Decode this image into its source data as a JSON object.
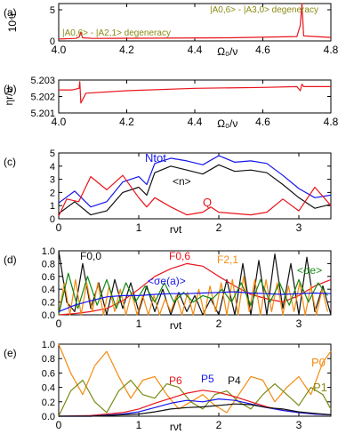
{
  "chart_data": [
    {
      "panel": "(a)",
      "type": "line",
      "ylabel": "10⁴r",
      "xlabel": "Ω₀/ν",
      "xlim": [
        4.0,
        4.8
      ],
      "ylim": [
        0,
        6
      ],
      "xticks": [
        "4.0",
        "4.2",
        "4.4",
        "4.6",
        "4.8"
      ],
      "yticks": [
        "0",
        "5"
      ],
      "annotations": [
        "|A0,6> - |A2,1> degeneracy",
        "|A0,6> - |A3,0> degeneracy"
      ],
      "series": [
        {
          "color": "#e8141c",
          "x": [
            4.0,
            4.05,
            4.06,
            4.065,
            4.07,
            4.1,
            4.3,
            4.5,
            4.7,
            4.71,
            4.715,
            4.72,
            4.8
          ],
          "y": [
            0.3,
            0.4,
            0.6,
            1.4,
            0.5,
            0.4,
            0.45,
            0.5,
            0.7,
            2.5,
            6.0,
            0.8,
            0.55
          ]
        }
      ]
    },
    {
      "panel": "(b)",
      "type": "line",
      "ylabel": "ηr/ν",
      "xlabel": "Ω₀/ν",
      "xlim": [
        4.0,
        4.8
      ],
      "ylim": [
        5.201,
        5.203
      ],
      "xticks": [
        "4.0",
        "4.2",
        "4.4",
        "4.6",
        "4.8"
      ],
      "yticks": [
        "5.201",
        "5.202",
        "5.203"
      ],
      "series": [
        {
          "color": "#e8141c",
          "x": [
            4.0,
            4.04,
            4.06,
            4.062,
            4.065,
            4.08,
            4.2,
            4.4,
            4.6,
            4.7,
            4.71,
            4.715,
            4.72,
            4.8
          ],
          "y": [
            5.2024,
            5.2024,
            5.2025,
            5.2029,
            5.2016,
            5.2022,
            5.20235,
            5.2025,
            5.20255,
            5.2026,
            5.20235,
            5.20275,
            5.2026,
            5.2026
          ]
        }
      ]
    },
    {
      "panel": "(c)",
      "type": "line",
      "xlabel": "rνt",
      "xlim": [
        0,
        3.4
      ],
      "ylim": [
        0,
        5
      ],
      "xticks": [
        "0",
        "1",
        "2",
        "3"
      ],
      "yticks": [
        "0",
        "1",
        "2",
        "3",
        "4",
        "5"
      ],
      "labels": [
        "Ntot",
        "<n>",
        "Q"
      ],
      "series": [
        {
          "label": "Ntot",
          "color": "#1515ee",
          "x": [
            0,
            0.2,
            0.4,
            0.6,
            0.8,
            1.0,
            1.1,
            1.2,
            1.4,
            1.6,
            1.8,
            2.0,
            2.2,
            2.4,
            2.6,
            2.8,
            3.0,
            3.2,
            3.4
          ],
          "y": [
            1.2,
            2.1,
            0.9,
            1.3,
            2.8,
            3.2,
            2.6,
            4.2,
            4.6,
            4.4,
            4.1,
            4.8,
            4.3,
            4.4,
            4.2,
            3.3,
            2.3,
            1.6,
            1.8
          ]
        },
        {
          "label": "<n>",
          "color": "#111111",
          "x": [
            0,
            0.2,
            0.4,
            0.6,
            0.8,
            1.0,
            1.1,
            1.2,
            1.4,
            1.6,
            1.8,
            2.0,
            2.2,
            2.4,
            2.6,
            2.8,
            3.0,
            3.2,
            3.4
          ],
          "y": [
            0.4,
            1.3,
            0.3,
            0.6,
            2.0,
            2.4,
            1.8,
            3.5,
            4.0,
            3.7,
            3.4,
            4.1,
            3.6,
            3.7,
            3.5,
            2.6,
            1.6,
            0.8,
            1.1
          ]
        },
        {
          "label": "Q",
          "color": "#e8141c",
          "x": [
            0,
            0.1,
            0.25,
            0.4,
            0.6,
            0.8,
            1.0,
            1.1,
            1.2,
            1.4,
            1.6,
            1.8,
            1.9,
            2.0,
            2.2,
            2.4,
            2.6,
            2.8,
            3.0,
            3.2,
            3.4
          ],
          "y": [
            0.2,
            1.5,
            1.3,
            3.2,
            2.2,
            3.3,
            1.6,
            0.9,
            1.6,
            0.9,
            0.3,
            0.5,
            0.9,
            0.5,
            0.4,
            0.3,
            0.5,
            1.5,
            0.6,
            2.4,
            1.0
          ]
        }
      ]
    },
    {
      "panel": "(d)",
      "type": "line",
      "xlabel": "rνt",
      "xlim": [
        0,
        3.4
      ],
      "ylim": [
        0,
        1.0
      ],
      "xticks": [
        "0",
        "1",
        "2",
        "3"
      ],
      "yticks": [
        "0.0",
        "0.2",
        "0.4",
        "0.6",
        "0.8",
        "1.0"
      ],
      "labels": [
        "F0,0",
        "F0,6",
        "F2,1",
        "<σe(a)>",
        "<σe>"
      ],
      "series": [
        {
          "label": "F0,0",
          "color": "#111111",
          "x": [
            0,
            0.1,
            0.2,
            0.3,
            0.4,
            0.5,
            0.6,
            0.7,
            0.8,
            0.9,
            1.0,
            1.1,
            1.2,
            1.3,
            1.4,
            1.5,
            1.6,
            1.7,
            1.8,
            1.9,
            2.0,
            2.1,
            2.2,
            2.3,
            2.4,
            2.5,
            2.6,
            2.7,
            2.8,
            2.9,
            3.0,
            3.1,
            3.2,
            3.3,
            3.4
          ],
          "y": [
            1.0,
            0.2,
            0.05,
            0.8,
            0.1,
            0.5,
            0.0,
            0.55,
            0.1,
            0.5,
            0.05,
            0.45,
            0.05,
            0.4,
            0.0,
            0.35,
            0.05,
            0.3,
            0.0,
            0.25,
            0.0,
            0.55,
            0.0,
            0.8,
            0.0,
            0.85,
            0.0,
            0.95,
            0.1,
            0.8,
            0.0,
            0.9,
            0.05,
            0.45,
            0.0
          ]
        },
        {
          "label": "F0,6",
          "color": "#e8141c",
          "x": [
            0,
            0.2,
            0.4,
            0.6,
            0.8,
            1.0,
            1.2,
            1.4,
            1.6,
            1.8,
            2.0,
            2.2,
            2.4,
            2.6,
            2.8,
            3.0,
            3.2,
            3.4
          ],
          "y": [
            0.0,
            0.02,
            0.05,
            0.1,
            0.22,
            0.4,
            0.6,
            0.72,
            0.8,
            0.76,
            0.6,
            0.45,
            0.32,
            0.25,
            0.2,
            0.3,
            0.45,
            0.55
          ]
        },
        {
          "label": "F2,1",
          "color": "#f58a0f",
          "x": [
            0,
            0.07,
            0.14,
            0.21,
            0.28,
            0.35,
            0.42,
            0.49,
            0.56,
            0.63,
            0.7,
            0.77,
            0.84,
            0.91,
            0.98,
            1.05,
            1.12,
            1.19,
            1.26,
            1.33,
            1.4,
            1.47,
            1.54,
            1.61,
            1.68,
            1.75,
            1.82,
            1.89,
            1.96,
            2.03,
            2.1,
            2.17,
            2.24,
            2.31,
            2.38,
            2.45,
            2.52,
            2.59,
            2.66,
            2.73,
            2.8,
            2.87,
            2.94,
            3.01,
            3.08,
            3.15,
            3.22,
            3.29,
            3.36
          ],
          "y": [
            0.0,
            0.5,
            0.0,
            0.55,
            0.0,
            0.5,
            0.05,
            0.5,
            0.0,
            0.45,
            0.05,
            0.4,
            0.0,
            0.35,
            0.0,
            0.3,
            0.0,
            0.3,
            0.0,
            0.25,
            0.05,
            0.3,
            0.0,
            0.35,
            0.0,
            0.4,
            0.0,
            0.45,
            0.05,
            0.5,
            0.0,
            0.55,
            0.0,
            0.6,
            0.05,
            0.55,
            0.0,
            0.55,
            0.05,
            0.5,
            0.0,
            0.45,
            0.05,
            0.5,
            0.0,
            0.45,
            0.0,
            0.4,
            0.05
          ]
        },
        {
          "label": "<σe>",
          "color": "#128a12",
          "x": [
            0,
            0.12,
            0.24,
            0.36,
            0.48,
            0.6,
            0.72,
            0.84,
            0.96,
            1.08,
            1.2,
            1.32,
            1.44,
            1.56,
            1.68,
            1.8,
            1.92,
            2.04,
            2.16,
            2.28,
            2.4,
            2.52,
            2.64,
            2.76,
            2.88,
            3.0,
            3.12,
            3.24,
            3.36
          ],
          "y": [
            0.0,
            0.65,
            0.1,
            0.6,
            0.15,
            0.55,
            0.1,
            0.5,
            0.2,
            0.45,
            0.2,
            0.5,
            0.2,
            0.35,
            0.2,
            0.3,
            0.25,
            0.4,
            0.2,
            0.5,
            0.15,
            0.55,
            0.2,
            0.5,
            0.15,
            0.55,
            0.2,
            0.5,
            0.3
          ]
        },
        {
          "label": "<σe(a)>",
          "color": "#1515ee",
          "x": [
            0,
            0.2,
            0.4,
            0.6,
            0.8,
            1.0,
            1.2,
            1.4,
            1.6,
            1.8,
            2.0,
            2.2,
            2.4,
            2.6,
            2.8,
            3.0,
            3.2,
            3.4
          ],
          "y": [
            0.05,
            0.15,
            0.22,
            0.28,
            0.3,
            0.3,
            0.32,
            0.33,
            0.33,
            0.34,
            0.35,
            0.36,
            0.34,
            0.33,
            0.32,
            0.33,
            0.34,
            0.33
          ]
        }
      ]
    },
    {
      "panel": "(e)",
      "type": "line",
      "xlabel": "rνt",
      "xlim": [
        0,
        3.4
      ],
      "ylim": [
        0,
        1.0
      ],
      "xticks": [
        "0",
        "1",
        "2",
        "3"
      ],
      "yticks": [
        "0.0",
        "0.2",
        "0.4",
        "0.6",
        "0.8",
        "1.0"
      ],
      "labels": [
        "P0",
        "P1",
        "P6",
        "P5",
        "P4"
      ],
      "series": [
        {
          "label": "P0",
          "color": "#f58a0f",
          "x": [
            0,
            0.15,
            0.3,
            0.45,
            0.6,
            0.75,
            0.9,
            1.05,
            1.2,
            1.35,
            1.5,
            1.65,
            1.8,
            1.95,
            2.1,
            2.25,
            2.4,
            2.55,
            2.7,
            2.85,
            3.0,
            3.15,
            3.3,
            3.4
          ],
          "y": [
            1.0,
            0.6,
            0.3,
            0.7,
            0.9,
            0.55,
            0.25,
            0.5,
            0.55,
            0.3,
            0.1,
            0.2,
            0.3,
            0.15,
            0.05,
            0.3,
            0.55,
            0.5,
            0.2,
            0.4,
            0.55,
            0.3,
            0.75,
            0.9
          ]
        },
        {
          "label": "P1",
          "color": "#7a8a12",
          "x": [
            0,
            0.15,
            0.3,
            0.45,
            0.6,
            0.75,
            0.9,
            1.05,
            1.2,
            1.35,
            1.5,
            1.65,
            1.8,
            1.95,
            2.1,
            2.25,
            2.4,
            2.55,
            2.7,
            2.85,
            3.0,
            3.15,
            3.3,
            3.4
          ],
          "y": [
            0.0,
            0.35,
            0.5,
            0.2,
            0.05,
            0.35,
            0.5,
            0.3,
            0.25,
            0.45,
            0.4,
            0.2,
            0.1,
            0.3,
            0.35,
            0.2,
            0.1,
            0.3,
            0.45,
            0.3,
            0.15,
            0.4,
            0.3,
            0.1
          ]
        },
        {
          "label": "P6",
          "color": "#e8141c",
          "x": [
            0,
            0.4,
            0.8,
            1.0,
            1.2,
            1.4,
            1.6,
            1.8,
            2.0,
            2.2,
            2.4,
            2.6,
            2.8,
            3.0,
            3.2,
            3.4
          ],
          "y": [
            0.0,
            0.01,
            0.05,
            0.1,
            0.18,
            0.25,
            0.32,
            0.36,
            0.33,
            0.27,
            0.2,
            0.13,
            0.08,
            0.05,
            0.03,
            0.02
          ]
        },
        {
          "label": "P5",
          "color": "#1515ee",
          "x": [
            0,
            0.4,
            0.8,
            1.0,
            1.2,
            1.4,
            1.6,
            1.8,
            2.0,
            2.2,
            2.4,
            2.6,
            2.8,
            3.0,
            3.2,
            3.4
          ],
          "y": [
            0.0,
            0.0,
            0.03,
            0.06,
            0.12,
            0.18,
            0.22,
            0.2,
            0.24,
            0.22,
            0.17,
            0.12,
            0.08,
            0.05,
            0.03,
            0.02
          ]
        },
        {
          "label": "P4",
          "color": "#111111",
          "x": [
            0,
            0.4,
            0.8,
            1.0,
            1.2,
            1.4,
            1.6,
            1.8,
            2.0,
            2.2,
            2.4,
            2.6,
            2.8,
            3.0,
            3.2,
            3.4
          ],
          "y": [
            0.0,
            0.0,
            0.02,
            0.03,
            0.06,
            0.1,
            0.12,
            0.13,
            0.15,
            0.17,
            0.16,
            0.12,
            0.1,
            0.06,
            0.04,
            0.02
          ]
        }
      ]
    }
  ]
}
